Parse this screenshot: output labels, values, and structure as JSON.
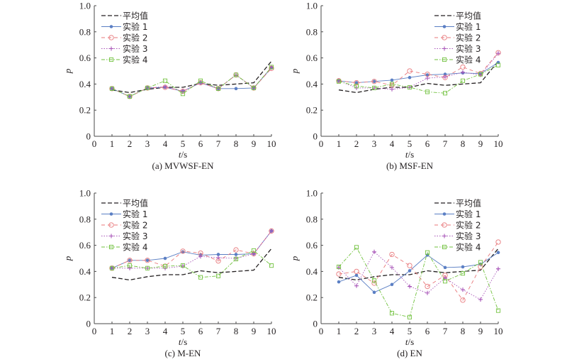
{
  "chart_data": [
    {
      "type": "line",
      "panel": "a",
      "caption": "(a) MVWSF-EN",
      "xlabel_italic": "t",
      "xlabel_unit": "/s",
      "ylabel": "p",
      "xlim": [
        0,
        10
      ],
      "ylim": [
        0,
        1.0
      ],
      "xticks": [
        "0",
        "1",
        "2",
        "3",
        "4",
        "5",
        "6",
        "7",
        "8",
        "9",
        "10"
      ],
      "yticks": [
        "0",
        "0.2",
        "0.4",
        "0.6",
        "0.8",
        "1.0"
      ],
      "legend_position": "top-left",
      "x": [
        1,
        2,
        3,
        4,
        5,
        6,
        7,
        8,
        9,
        10
      ],
      "series": [
        {
          "name": "平均值",
          "values": [
            0.355,
            0.335,
            0.36,
            0.375,
            0.375,
            0.405,
            0.39,
            0.4,
            0.41,
            0.575
          ]
        },
        {
          "name": "实验 1",
          "values": [
            0.365,
            0.305,
            0.37,
            0.375,
            0.345,
            0.41,
            0.365,
            0.365,
            0.37,
            0.525
          ]
        },
        {
          "name": "实验 2",
          "values": [
            0.365,
            0.305,
            0.37,
            0.375,
            0.345,
            0.41,
            0.365,
            0.47,
            0.37,
            0.52
          ]
        },
        {
          "name": "实验 3",
          "values": [
            0.365,
            0.305,
            0.37,
            0.38,
            0.345,
            0.41,
            0.365,
            0.47,
            0.37,
            0.525
          ]
        },
        {
          "name": "实验 4",
          "values": [
            0.365,
            0.305,
            0.37,
            0.425,
            0.325,
            0.425,
            0.365,
            0.47,
            0.37,
            0.53
          ]
        }
      ]
    },
    {
      "type": "line",
      "panel": "b",
      "caption": "(b) MSF-EN",
      "xlabel_italic": "t",
      "xlabel_unit": "/s",
      "ylabel": "p",
      "xlim": [
        0,
        10
      ],
      "ylim": [
        0,
        1.0
      ],
      "xticks": [
        "0",
        "1",
        "2",
        "3",
        "4",
        "5",
        "6",
        "7",
        "8",
        "9",
        "10"
      ],
      "yticks": [
        "0",
        "0.2",
        "0.4",
        "0.6",
        "0.8",
        "1.0"
      ],
      "legend_position": "top-right",
      "x": [
        1,
        2,
        3,
        4,
        5,
        6,
        7,
        8,
        9,
        10
      ],
      "series": [
        {
          "name": "平均值",
          "values": [
            0.355,
            0.335,
            0.36,
            0.375,
            0.375,
            0.405,
            0.39,
            0.4,
            0.41,
            0.575
          ]
        },
        {
          "name": "实验 1",
          "values": [
            0.425,
            0.41,
            0.42,
            0.43,
            0.45,
            0.47,
            0.475,
            0.485,
            0.48,
            0.565
          ]
        },
        {
          "name": "实验 2",
          "values": [
            0.425,
            0.41,
            0.42,
            0.39,
            0.5,
            0.475,
            0.45,
            0.53,
            0.48,
            0.64
          ]
        },
        {
          "name": "实验 3",
          "values": [
            0.425,
            0.37,
            0.37,
            0.36,
            0.375,
            0.445,
            0.455,
            0.49,
            0.47,
            0.635
          ]
        },
        {
          "name": "实验 4",
          "values": [
            0.42,
            0.385,
            0.37,
            0.4,
            0.375,
            0.34,
            0.33,
            0.425,
            0.475,
            0.545
          ]
        }
      ]
    },
    {
      "type": "line",
      "panel": "c",
      "caption": "(c) M-EN",
      "xlabel_italic": "t",
      "xlabel_unit": "/s",
      "ylabel": "p",
      "xlim": [
        0,
        10
      ],
      "ylim": [
        0,
        1.0
      ],
      "xticks": [
        "0",
        "1",
        "2",
        "3",
        "4",
        "5",
        "6",
        "7",
        "8",
        "9",
        "10"
      ],
      "yticks": [
        "0",
        "0.2",
        "0.4",
        "0.6",
        "0.8",
        "1.0"
      ],
      "legend_position": "top-left",
      "x": [
        1,
        2,
        3,
        4,
        5,
        6,
        7,
        8,
        9,
        10
      ],
      "series": [
        {
          "name": "平均值",
          "values": [
            0.355,
            0.335,
            0.36,
            0.375,
            0.375,
            0.405,
            0.39,
            0.4,
            0.41,
            0.575
          ]
        },
        {
          "name": "实验 1",
          "values": [
            0.425,
            0.485,
            0.485,
            0.5,
            0.55,
            0.525,
            0.53,
            0.53,
            0.535,
            0.71
          ]
        },
        {
          "name": "实验 2",
          "values": [
            0.425,
            0.485,
            0.485,
            0.44,
            0.555,
            0.54,
            0.48,
            0.565,
            0.535,
            0.71
          ]
        },
        {
          "name": "实验 3",
          "values": [
            0.425,
            0.425,
            0.425,
            0.425,
            0.44,
            0.515,
            0.505,
            0.5,
            0.535,
            0.71
          ]
        },
        {
          "name": "实验 4",
          "values": [
            0.425,
            0.445,
            0.425,
            0.44,
            0.445,
            0.355,
            0.365,
            0.495,
            0.56,
            0.445
          ]
        }
      ]
    },
    {
      "type": "line",
      "panel": "d",
      "caption": "(d) EN",
      "xlabel_italic": "t",
      "xlabel_unit": "/s",
      "ylabel": "p",
      "xlim": [
        0,
        10
      ],
      "ylim": [
        0,
        1.0
      ],
      "xticks": [
        "0",
        "1",
        "2",
        "3",
        "4",
        "5",
        "6",
        "7",
        "8",
        "9",
        "10"
      ],
      "yticks": [
        "0",
        "0.2",
        "0.4",
        "0.6",
        "0.8",
        "1.0"
      ],
      "legend_position": "top-right",
      "x": [
        1,
        2,
        3,
        4,
        5,
        6,
        7,
        8,
        9,
        10
      ],
      "series": [
        {
          "name": "平均值",
          "values": [
            0.355,
            0.335,
            0.36,
            0.375,
            0.375,
            0.405,
            0.39,
            0.4,
            0.41,
            0.575
          ]
        },
        {
          "name": "实验 1",
          "values": [
            0.32,
            0.37,
            0.24,
            0.3,
            0.405,
            0.525,
            0.43,
            0.435,
            0.455,
            0.545
          ]
        },
        {
          "name": "实验 2",
          "values": [
            0.38,
            0.4,
            0.31,
            0.53,
            0.445,
            0.285,
            0.37,
            0.18,
            0.435,
            0.625
          ]
        },
        {
          "name": "实验 3",
          "values": [
            0.43,
            0.29,
            0.55,
            0.43,
            0.285,
            0.235,
            0.35,
            0.26,
            0.185,
            0.42
          ]
        },
        {
          "name": "实验 4",
          "values": [
            0.435,
            0.585,
            0.33,
            0.08,
            0.05,
            0.545,
            0.325,
            0.385,
            0.47,
            0.1
          ]
        }
      ]
    }
  ],
  "series_styles": [
    {
      "color": "#231f20",
      "marker": "none",
      "dash": "dashed"
    },
    {
      "color": "#5b7fc4",
      "marker": "dot",
      "dash": "solid"
    },
    {
      "color": "#e8777a",
      "marker": "circle",
      "dash": "dashdash"
    },
    {
      "color": "#a855b8",
      "marker": "plus",
      "dash": "dotted"
    },
    {
      "color": "#72c23f",
      "marker": "square",
      "dash": "dashdot"
    }
  ],
  "axis_color": "#4a4a4a"
}
